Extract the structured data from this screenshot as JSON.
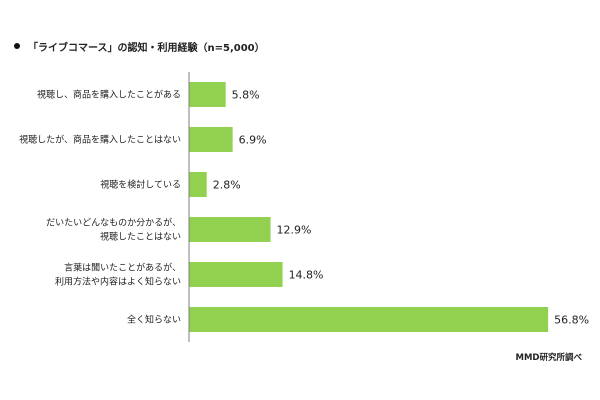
{
  "chart_data": {
    "type": "bar",
    "orientation": "horizontal",
    "title": "「ライブコマース」の認知・利用経験（n=5,000）",
    "categories": [
      [
        "視聴し、商品を購入したことがある"
      ],
      [
        "視聴したが、商品を購入したことはない"
      ],
      [
        "視聴を検討している"
      ],
      [
        "だいたいどんなものか分かるが、",
        "視聴したことはない"
      ],
      [
        "言葉は聞いたことがあるが、",
        "利用方法や内容はよく知らない"
      ],
      [
        "全く知らない"
      ]
    ],
    "values": [
      5.8,
      6.9,
      2.8,
      12.9,
      14.8,
      56.8
    ],
    "value_labels": [
      "5.8%",
      "6.9%",
      "2.8%",
      "12.9%",
      "14.8%",
      "56.8%"
    ],
    "unit": "%",
    "xlim": [
      0,
      62
    ],
    "grid": false,
    "bar_color": "#92d050",
    "axis_color": "#7f7f7f",
    "source": "MMD研究所調べ"
  }
}
